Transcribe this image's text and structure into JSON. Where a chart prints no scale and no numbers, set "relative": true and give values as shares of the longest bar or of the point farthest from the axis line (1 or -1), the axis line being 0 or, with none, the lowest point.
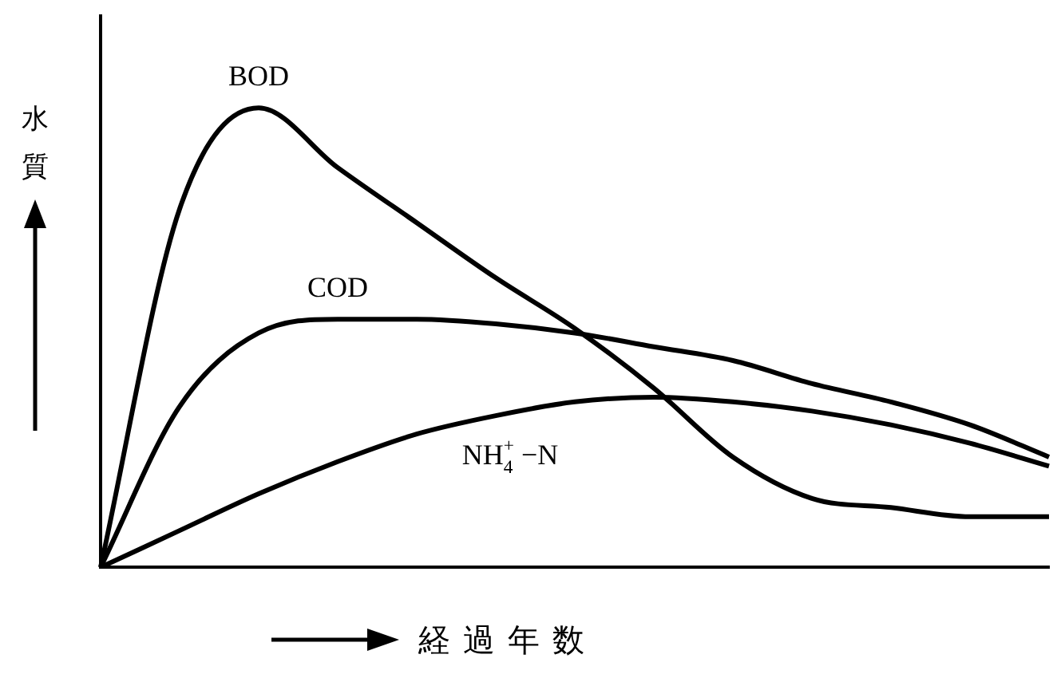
{
  "chart_data": {
    "type": "line",
    "relative": true,
    "xlabel": "経過年数",
    "ylabel": "水質",
    "categories": [
      null,
      null,
      null,
      null,
      null,
      null,
      null,
      null,
      null,
      null,
      null,
      null,
      null
    ],
    "series": [
      {
        "name": "BOD",
        "color": "#000000",
        "values": [
          0,
          0.78,
          1,
          0.87,
          0.75,
          0.63,
          0.52,
          0.39,
          0.24,
          0.15,
          0.13,
          0.11,
          0.11
        ]
      },
      {
        "name": "COD",
        "color": "#000000",
        "values": [
          0,
          0.35,
          0.51,
          0.54,
          0.54,
          0.53,
          0.51,
          0.48,
          0.45,
          0.4,
          0.36,
          0.31,
          0.24
        ]
      },
      {
        "name": "NH$_{4}$$^{+}$ −N",
        "color": "#000000",
        "values": [
          0,
          0.08,
          0.16,
          0.23,
          0.29,
          0.33,
          0.36,
          0.37,
          0.36,
          0.34,
          0.31,
          0.27,
          0.22
        ]
      }
    ],
    "grid": false,
    "legend": false,
    "marker": "none",
    "line_style": "solid"
  }
}
